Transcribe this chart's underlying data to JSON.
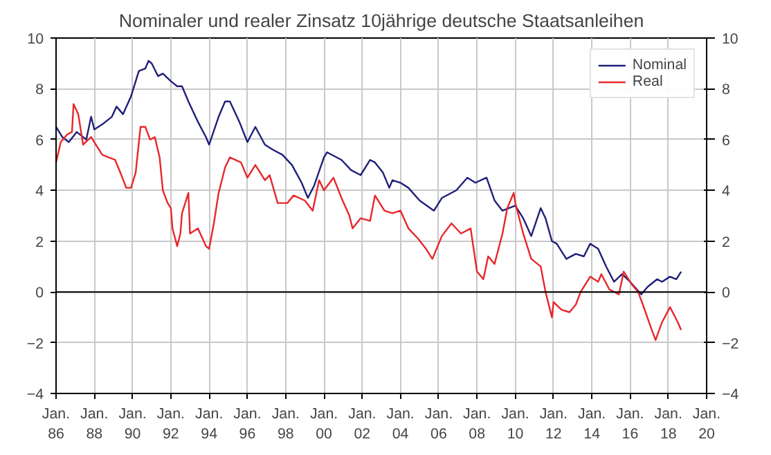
{
  "chart_data": {
    "type": "line",
    "title": "Nominaler und realer Zinsatz 10jährige deutsche Staatsanleihen",
    "xlim": [
      "1986-01",
      "2020-01"
    ],
    "xticks": [
      {
        "value": "1986-01",
        "label": "Jan.\n86"
      },
      {
        "value": "1988-01",
        "label": "Jan.\n88"
      },
      {
        "value": "1990-01",
        "label": "Jan.\n90"
      },
      {
        "value": "1992-01",
        "label": "Jan.\n92"
      },
      {
        "value": "1994-01",
        "label": "Jan.\n94"
      },
      {
        "value": "1996-01",
        "label": "Jan.\n96"
      },
      {
        "value": "1998-01",
        "label": "Jan.\n98"
      },
      {
        "value": "2000-01",
        "label": "Jan.\n00"
      },
      {
        "value": "2002-01",
        "label": "Jan.\n02"
      },
      {
        "value": "2004-01",
        "label": "Jan.\n04"
      },
      {
        "value": "2006-01",
        "label": "Jan.\n06"
      },
      {
        "value": "2008-01",
        "label": "Jan.\n08"
      },
      {
        "value": "2010-01",
        "label": "Jan.\n10"
      },
      {
        "value": "2012-01",
        "label": "Jan.\n12"
      },
      {
        "value": "2014-01",
        "label": "Jan.\n14"
      },
      {
        "value": "2016-01",
        "label": "Jan.\n16"
      },
      {
        "value": "2018-01",
        "label": "Jan.\n18"
      },
      {
        "value": "2020-01",
        "label": "Jan.\n20"
      }
    ],
    "ylim": [
      -4,
      10
    ],
    "yticks": [
      -4,
      -2,
      0,
      2,
      4,
      6,
      8,
      10
    ],
    "y2lim": [
      -4,
      10
    ],
    "y2ticks": [
      -4,
      -2,
      0,
      2,
      4,
      6,
      8,
      10
    ],
    "grid": true,
    "legend": "top right",
    "line_style": "solid",
    "ref_lines": [
      {
        "axis": "y",
        "value": 0,
        "color": "#000000"
      }
    ],
    "series": [
      {
        "name": "Nominal",
        "color": "#1f1f7a",
        "x": [
          "1986-01",
          "1986-05",
          "1986-09",
          "1987-02",
          "1987-08",
          "1987-11",
          "1988-01",
          "1988-06",
          "1988-12",
          "1989-03",
          "1989-07",
          "1989-12",
          "1990-05",
          "1990-09",
          "1990-11",
          "1991-01",
          "1991-05",
          "1991-08",
          "1992-01",
          "1992-05",
          "1992-08",
          "1992-12",
          "1993-06",
          "1993-11",
          "1994-01",
          "1994-07",
          "1994-11",
          "1995-02",
          "1995-08",
          "1996-01",
          "1996-06",
          "1996-12",
          "1997-05",
          "1997-11",
          "1998-05",
          "1998-11",
          "1999-03",
          "1999-07",
          "2000-01",
          "2000-03",
          "2000-12",
          "2001-06",
          "2001-12",
          "2002-06",
          "2002-09",
          "2003-02",
          "2003-06",
          "2003-08",
          "2004-01",
          "2004-06",
          "2005-01",
          "2005-10",
          "2006-03",
          "2006-12",
          "2007-07",
          "2007-12",
          "2008-07",
          "2008-12",
          "2009-05",
          "2010-01",
          "2010-06",
          "2010-11",
          "2011-05",
          "2011-08",
          "2011-12",
          "2012-03",
          "2012-09",
          "2013-03",
          "2013-08",
          "2013-12",
          "2014-05",
          "2014-10",
          "2015-03",
          "2015-08",
          "2016-01",
          "2016-08",
          "2016-12",
          "2017-06",
          "2017-09",
          "2018-02",
          "2018-06",
          "2018-09"
        ],
        "values": [
          6.5,
          6.1,
          5.9,
          6.3,
          6.0,
          6.9,
          6.4,
          6.6,
          6.9,
          7.3,
          7.0,
          7.7,
          8.7,
          8.8,
          9.1,
          9.0,
          8.5,
          8.6,
          8.3,
          8.1,
          8.1,
          7.5,
          6.7,
          6.1,
          5.8,
          6.9,
          7.5,
          7.5,
          6.7,
          5.9,
          6.5,
          5.8,
          5.6,
          5.4,
          5.0,
          4.3,
          3.7,
          4.2,
          5.3,
          5.5,
          5.2,
          4.8,
          4.6,
          5.2,
          5.1,
          4.7,
          4.1,
          4.4,
          4.3,
          4.1,
          3.6,
          3.2,
          3.7,
          4.0,
          4.5,
          4.3,
          4.5,
          3.6,
          3.2,
          3.4,
          2.9,
          2.2,
          3.3,
          2.9,
          2.0,
          1.9,
          1.3,
          1.5,
          1.4,
          1.9,
          1.7,
          1.0,
          0.4,
          0.7,
          0.4,
          -0.1,
          0.2,
          0.5,
          0.4,
          0.6,
          0.5,
          0.8
        ]
      },
      {
        "name": "Real",
        "color": "#e8262a",
        "x": [
          "1986-01",
          "1986-04",
          "1986-08",
          "1986-11",
          "1986-12",
          "1987-03",
          "1987-06",
          "1987-11",
          "1988-03",
          "1988-06",
          "1988-10",
          "1989-02",
          "1989-06",
          "1989-09",
          "1989-12",
          "1990-03",
          "1990-06",
          "1990-09",
          "1990-12",
          "1991-03",
          "1991-06",
          "1991-08",
          "1991-11",
          "1992-01",
          "1992-02",
          "1992-05",
          "1992-07",
          "1992-08",
          "1992-12",
          "1993-01",
          "1993-06",
          "1993-11",
          "1994-01",
          "1994-04",
          "1994-07",
          "1994-11",
          "1995-02",
          "1995-09",
          "1996-01",
          "1996-06",
          "1996-12",
          "1997-03",
          "1997-08",
          "1998-02",
          "1998-06",
          "1999-01",
          "1999-06",
          "1999-10",
          "2000-01",
          "2000-07",
          "2000-12",
          "2001-05",
          "2001-07",
          "2001-12",
          "2002-06",
          "2002-09",
          "2003-03",
          "2003-08",
          "2004-01",
          "2004-06",
          "2004-12",
          "2005-05",
          "2005-09",
          "2006-03",
          "2006-09",
          "2007-03",
          "2007-09",
          "2008-01",
          "2008-05",
          "2008-08",
          "2008-12",
          "2009-05",
          "2009-08",
          "2009-12",
          "2010-01",
          "2010-06",
          "2010-11",
          "2011-05",
          "2011-08",
          "2011-12",
          "2012-01",
          "2012-06",
          "2012-11",
          "2013-03",
          "2013-06",
          "2013-12",
          "2014-05",
          "2014-07",
          "2014-12",
          "2015-06",
          "2015-09",
          "2016-02",
          "2016-06",
          "2016-09",
          "2017-02",
          "2017-05",
          "2017-09",
          "2018-02",
          "2018-07",
          "2018-09"
        ],
        "values": [
          5.1,
          5.9,
          6.2,
          6.3,
          7.4,
          7.0,
          5.8,
          6.1,
          5.7,
          5.4,
          5.3,
          5.2,
          4.6,
          4.1,
          4.1,
          4.7,
          6.5,
          6.5,
          6.0,
          6.1,
          5.3,
          4.0,
          3.5,
          3.3,
          2.5,
          1.8,
          2.3,
          3.1,
          3.9,
          2.3,
          2.5,
          1.8,
          1.7,
          2.7,
          3.9,
          4.9,
          5.3,
          5.1,
          4.5,
          5.0,
          4.4,
          4.6,
          3.5,
          3.5,
          3.8,
          3.6,
          3.2,
          4.4,
          4.0,
          4.5,
          3.7,
          3.0,
          2.5,
          2.9,
          2.8,
          3.8,
          3.2,
          3.1,
          3.2,
          2.5,
          2.1,
          1.7,
          1.3,
          2.2,
          2.7,
          2.3,
          2.5,
          0.8,
          0.5,
          1.4,
          1.1,
          2.3,
          3.3,
          3.9,
          3.5,
          2.3,
          1.3,
          1.0,
          0.0,
          -1.0,
          -0.4,
          -0.7,
          -0.8,
          -0.5,
          0.0,
          0.6,
          0.4,
          0.7,
          0.1,
          -0.1,
          0.8,
          0.3,
          0.0,
          -0.5,
          -1.4,
          -1.9,
          -1.2,
          -0.6,
          -1.2,
          -1.5
        ]
      }
    ]
  }
}
